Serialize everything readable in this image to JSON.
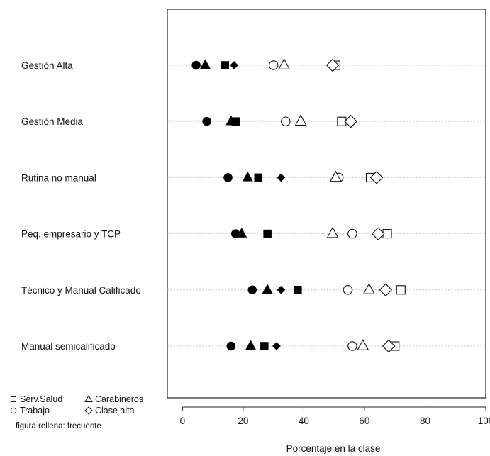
{
  "chart_data": {
    "type": "scatter",
    "xlabel": "Porcentaje en la clase",
    "xlim": [
      -5,
      100
    ],
    "xticks": [
      0,
      20,
      40,
      60,
      80,
      100
    ],
    "categories": [
      "Gestión Alta",
      "Gestión Media",
      "Rutina no manual",
      "Peq. empresario y TCP",
      "Técnico y Manual Calificado",
      "Manual semicalificado"
    ],
    "series": [
      {
        "name": "Trabajo",
        "shape": "circle",
        "fill": "filled",
        "values": [
          4.5,
          8,
          15,
          17.5,
          23,
          16
        ]
      },
      {
        "name": "Carabineros",
        "shape": "triangle",
        "fill": "filled",
        "values": [
          7.5,
          16,
          21.5,
          19.5,
          28,
          22.5
        ]
      },
      {
        "name": "Serv.Salud",
        "shape": "square",
        "fill": "filled",
        "values": [
          14,
          17.5,
          25,
          28,
          38,
          27
        ]
      },
      {
        "name": "Clase alta",
        "shape": "diamond",
        "fill": "filled",
        "values": [
          17,
          16.5,
          32.5,
          null,
          32.5,
          31
        ]
      },
      {
        "name": "Trabajo",
        "shape": "circle",
        "fill": "open",
        "values": [
          30,
          34,
          51.5,
          56,
          54.5,
          56
        ]
      },
      {
        "name": "Carabineros",
        "shape": "triangle",
        "fill": "open",
        "values": [
          33.5,
          39,
          50.5,
          49.5,
          61.5,
          59.5
        ]
      },
      {
        "name": "Serv.Salud",
        "shape": "square",
        "fill": "open",
        "values": [
          50.5,
          52.5,
          62,
          67.5,
          72,
          70
        ]
      },
      {
        "name": "Clase alta",
        "shape": "diamond",
        "fill": "open",
        "values": [
          49.5,
          55.5,
          64,
          64.5,
          67,
          68
        ]
      }
    ],
    "legend": {
      "position": "bottom-left",
      "entries": [
        {
          "label": "Serv.Salud",
          "symbol": "square"
        },
        {
          "label": "Carabineros",
          "symbol": "triangle"
        },
        {
          "label": "Trabajo",
          "symbol": "circle"
        },
        {
          "label": "Clase alta",
          "symbol": "diamond"
        }
      ],
      "note": "figura rellena: frecuente"
    },
    "grid": "dotted horizontal lines per category"
  }
}
